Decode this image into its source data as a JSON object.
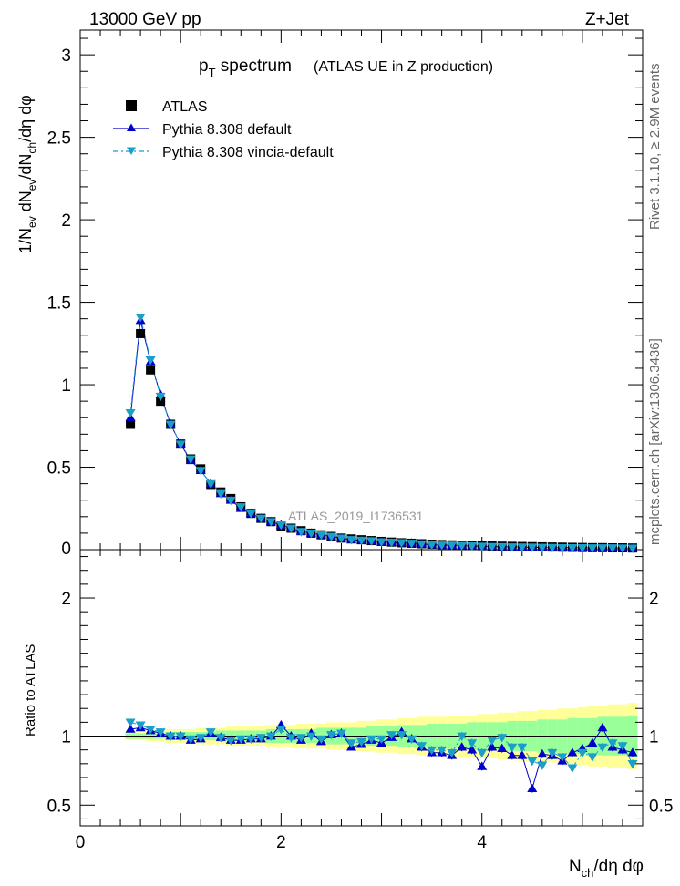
{
  "header": {
    "left": "13000 GeV pp",
    "right": "Z+Jet"
  },
  "side": {
    "rivet": "Rivet 3.1.10, ≥ 2.9M events",
    "mcplots": "mcplots.cern.ch [arXiv:1306.3436]"
  },
  "title": {
    "main_p": "p",
    "main_sub": "T",
    "main_rest": " spectrum",
    "paren": "(ATLAS UE in Z production)"
  },
  "watermark": "ATLAS_2019_I1736531",
  "legend": [
    {
      "label": "ATLAS",
      "marker": "square",
      "color": "#000000"
    },
    {
      "label": "Pythia 8.308 default",
      "marker": "triangle-up",
      "color": "#0000cc"
    },
    {
      "label": "Pythia 8.308 vincia-default",
      "marker": "triangle-down",
      "color": "#1a9fc9"
    }
  ],
  "axes": {
    "ylabel_top": "1/N_ev dN_ev/dN_ch/dη dφ",
    "ylabel_bottom": "Ratio to ATLAS",
    "xlabel": "N_ch/dη dφ"
  },
  "colors": {
    "default": "#0000cc",
    "vincia": "#1a9fc9",
    "band_inner": "#99ff99",
    "band_outer": "#ffff99"
  },
  "chart_data": {
    "type": "scatter",
    "x": [
      0.5,
      0.6,
      0.7,
      0.8,
      0.9,
      1.0,
      1.1,
      1.2,
      1.3,
      1.4,
      1.5,
      1.6,
      1.7,
      1.8,
      1.9,
      2.0,
      2.1,
      2.2,
      2.3,
      2.4,
      2.5,
      2.6,
      2.7,
      2.8,
      2.9,
      3.0,
      3.1,
      3.2,
      3.3,
      3.4,
      3.5,
      3.6,
      3.7,
      3.8,
      3.9,
      4.0,
      4.1,
      4.2,
      4.3,
      4.4,
      4.5,
      4.6,
      4.7,
      4.8,
      4.9,
      5.0,
      5.1,
      5.2,
      5.3,
      5.4,
      5.5
    ],
    "xlim": [
      0,
      5.6
    ],
    "main": {
      "ylim": [
        0,
        3.15
      ],
      "yticks": [
        0.5,
        1,
        1.5,
        2,
        2.5,
        3
      ],
      "series": [
        {
          "name": "ATLAS",
          "values": [
            0.76,
            1.31,
            1.09,
            0.9,
            0.76,
            0.64,
            0.55,
            0.49,
            0.39,
            0.35,
            0.31,
            0.26,
            0.22,
            0.19,
            0.17,
            0.14,
            0.13,
            0.115,
            0.1,
            0.09,
            0.08,
            0.07,
            0.065,
            0.06,
            0.055,
            0.05,
            0.046,
            0.042,
            0.039,
            0.036,
            0.033,
            0.031,
            0.029,
            0.027,
            0.025,
            0.024,
            0.022,
            0.021,
            0.02,
            0.019,
            0.018,
            0.017,
            0.016,
            0.015,
            0.014,
            0.013,
            0.012,
            0.012,
            0.011,
            0.011,
            0.01
          ]
        },
        {
          "name": "Pythia 8.308 default",
          "values": [
            0.8,
            1.39,
            1.14,
            0.94,
            0.76,
            0.64,
            0.54,
            0.48,
            0.4,
            0.34,
            0.3,
            0.25,
            0.22,
            0.19,
            0.17,
            0.15,
            0.13,
            0.11,
            0.1,
            0.09,
            0.08,
            0.07,
            0.061,
            0.056,
            0.053,
            0.047,
            0.044,
            0.041,
            0.04,
            0.035,
            0.03,
            0.028,
            0.026,
            0.025,
            0.022,
            0.02,
            0.019,
            0.018,
            0.017,
            0.016,
            0.014,
            0.014,
            0.013,
            0.012,
            0.012,
            0.012,
            0.011,
            0.011,
            0.011,
            0.01,
            0.009
          ]
        },
        {
          "name": "Pythia 8.308 vincia-default",
          "values": [
            0.83,
            1.41,
            1.15,
            0.93,
            0.76,
            0.64,
            0.55,
            0.48,
            0.4,
            0.34,
            0.3,
            0.26,
            0.22,
            0.19,
            0.17,
            0.15,
            0.13,
            0.11,
            0.1,
            0.09,
            0.08,
            0.07,
            0.061,
            0.057,
            0.054,
            0.048,
            0.045,
            0.042,
            0.039,
            0.035,
            0.03,
            0.028,
            0.027,
            0.025,
            0.023,
            0.021,
            0.019,
            0.018,
            0.017,
            0.016,
            0.015,
            0.014,
            0.013,
            0.012,
            0.012,
            0.012,
            0.011,
            0.011,
            0.011,
            0.01,
            0.009
          ]
        }
      ]
    },
    "ratio": {
      "ylim": [
        0.35,
        2.35
      ],
      "yticks": [
        0.5,
        1,
        2
      ],
      "reference": 1,
      "band_inner": [
        0.02,
        0.02,
        0.02,
        0.02,
        0.03,
        0.03,
        0.03,
        0.03,
        0.03,
        0.04,
        0.04,
        0.04,
        0.04,
        0.04,
        0.05,
        0.05,
        0.05,
        0.05,
        0.05,
        0.06,
        0.06,
        0.06,
        0.06,
        0.06,
        0.07,
        0.07,
        0.07,
        0.08,
        0.08,
        0.08,
        0.09,
        0.09,
        0.09,
        0.09,
        0.1,
        0.1,
        0.1,
        0.1,
        0.11,
        0.11,
        0.11,
        0.12,
        0.12,
        0.12,
        0.13,
        0.13,
        0.13,
        0.14,
        0.14,
        0.14,
        0.15
      ],
      "band_outer": [
        0.03,
        0.03,
        0.04,
        0.04,
        0.05,
        0.05,
        0.05,
        0.06,
        0.06,
        0.06,
        0.07,
        0.07,
        0.07,
        0.07,
        0.08,
        0.08,
        0.08,
        0.09,
        0.09,
        0.09,
        0.1,
        0.1,
        0.1,
        0.11,
        0.11,
        0.12,
        0.12,
        0.13,
        0.13,
        0.14,
        0.14,
        0.14,
        0.15,
        0.15,
        0.15,
        0.16,
        0.16,
        0.17,
        0.17,
        0.18,
        0.18,
        0.19,
        0.19,
        0.2,
        0.2,
        0.21,
        0.22,
        0.22,
        0.23,
        0.23,
        0.24
      ],
      "series": [
        {
          "name": "Pythia 8.308 default",
          "values": [
            1.05,
            1.06,
            1.04,
            1.02,
            1.0,
            1.0,
            0.97,
            0.98,
            1.02,
            0.99,
            0.97,
            0.97,
            0.98,
            0.98,
            1.0,
            1.08,
            1.0,
            0.97,
            1.02,
            0.96,
            1.01,
            1.02,
            0.92,
            0.94,
            0.97,
            0.95,
            0.99,
            1.03,
            0.98,
            0.92,
            0.88,
            0.88,
            0.86,
            0.92,
            0.9,
            0.78,
            0.92,
            0.91,
            0.86,
            0.86,
            0.62,
            0.87,
            0.86,
            0.82,
            0.88,
            0.91,
            0.95,
            1.06,
            0.92,
            0.9,
            0.88
          ]
        },
        {
          "name": "Pythia 8.308 vincia-default",
          "values": [
            1.1,
            1.08,
            1.05,
            1.03,
            1.0,
            1.0,
            0.98,
            0.99,
            1.03,
            0.99,
            0.97,
            0.98,
            0.98,
            0.99,
            1.0,
            1.05,
            0.99,
            0.99,
            1.0,
            0.98,
            1.01,
            1.02,
            0.95,
            0.96,
            0.98,
            0.98,
            1.01,
            1.01,
            0.98,
            0.93,
            0.9,
            0.9,
            0.88,
            1.0,
            0.95,
            0.88,
            0.97,
            0.99,
            0.92,
            0.92,
            0.82,
            0.79,
            0.88,
            0.85,
            0.77,
            0.88,
            0.85,
            0.92,
            0.95,
            0.93,
            0.8
          ]
        }
      ]
    },
    "xticks": [
      0,
      2,
      4
    ]
  }
}
